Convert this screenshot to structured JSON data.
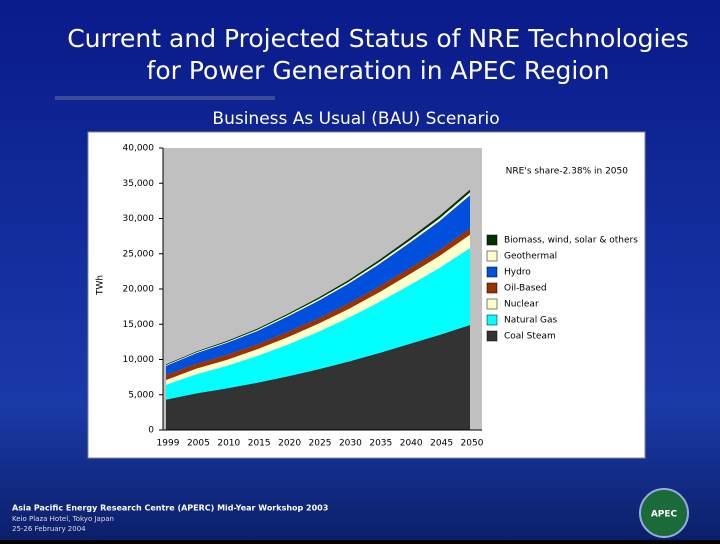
{
  "slide": {
    "title_line1": "Current and Projected Status of NRE Technologies",
    "title_line2": "for Power Generation in APEC Region",
    "footer_line1": "Asia Pacific Energy Research Centre (APERC) Mid-Year Workshop 2003",
    "footer_line2": "Keio Plaza Hotel, Tokyo Japan",
    "footer_line3": "25-26 February 2004",
    "logo_text": "APEC"
  },
  "chart_data": {
    "type": "stacked_area",
    "title": "Business As Usual (BAU) Scenario",
    "y_label": "TWh",
    "annotation": "NRE's share-2.38% in 2050",
    "categories": [
      "1999",
      "2005",
      "2010",
      "2015",
      "2020",
      "2025",
      "2030",
      "2035",
      "2040",
      "2045",
      "2050"
    ],
    "ylim": [
      0,
      40000
    ],
    "yticks": [
      0,
      {
        "value": 5000,
        "label": "5,000"
      },
      {
        "value": 10000,
        "label": "10,000"
      },
      {
        "value": 15000,
        "label": "15,000"
      },
      {
        "value": 20000,
        "label": "20,000"
      },
      {
        "value": 25000,
        "label": "25,000"
      },
      {
        "value": 30000,
        "label": "30,000"
      },
      {
        "value": 35000,
        "label": "35,000"
      },
      {
        "value": 40000,
        "label": "40,000"
      }
    ],
    "series": [
      {
        "name": "Coal Steam",
        "color": "#333333",
        "values": [
          4300,
          5200,
          5900,
          6700,
          7600,
          8600,
          9700,
          10900,
          12200,
          13500,
          14900
        ]
      },
      {
        "name": "Natural Gas",
        "color": "#00ffff",
        "values": [
          2100,
          2700,
          3200,
          3800,
          4500,
          5300,
          6200,
          7200,
          8300,
          9500,
          10900
        ]
      },
      {
        "name": "Nuclear",
        "color": "#ffffcc",
        "values": [
          700,
          800,
          850,
          950,
          1050,
          1150,
          1250,
          1400,
          1550,
          1700,
          1900
        ]
      },
      {
        "name": "Oil-Based",
        "color": "#993300",
        "values": [
          700,
          700,
          700,
          700,
          750,
          750,
          800,
          800,
          850,
          850,
          900
        ]
      },
      {
        "name": "Hydro",
        "color": "#0050dd",
        "values": [
          1300,
          1500,
          1700,
          1900,
          2200,
          2500,
          2800,
          3200,
          3600,
          4100,
          4700
        ]
      },
      {
        "name": "Geothermal",
        "color": "#ffffcc",
        "values": [
          100,
          120,
          140,
          160,
          190,
          220,
          250,
          290,
          330,
          370,
          400
        ]
      },
      {
        "name": "Biomass, wind, solar & others",
        "color": "#003300",
        "values": [
          100,
          120,
          140,
          160,
          190,
          220,
          250,
          290,
          330,
          370,
          400
        ]
      }
    ]
  }
}
